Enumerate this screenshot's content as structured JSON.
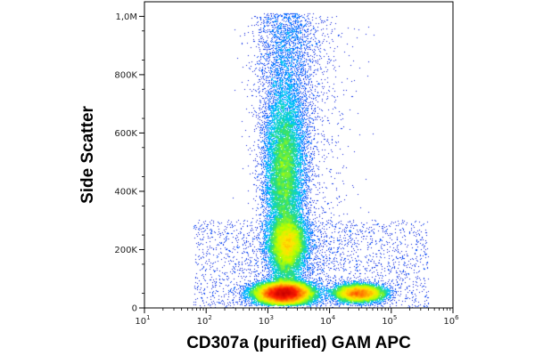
{
  "chart_data": {
    "type": "scatter",
    "title": "",
    "xlabel": "CD307a (purified) GAM APC",
    "ylabel": "Side Scatter",
    "x_scale": "log",
    "y_scale": "linear",
    "xlim": [
      10,
      1000000
    ],
    "ylim": [
      0,
      1050000
    ],
    "x_ticks": [
      {
        "value": 10,
        "base": "10",
        "exp": "1"
      },
      {
        "value": 100,
        "base": "10",
        "exp": "2"
      },
      {
        "value": 1000,
        "base": "10",
        "exp": "3"
      },
      {
        "value": 10000,
        "base": "10",
        "exp": "4"
      },
      {
        "value": 100000,
        "base": "10",
        "exp": "5"
      },
      {
        "value": 1000000,
        "base": "10",
        "exp": "6"
      }
    ],
    "y_ticks": [
      {
        "value": 0,
        "label": "0"
      },
      {
        "value": 200000,
        "label": "200K"
      },
      {
        "value": 400000,
        "label": "400K"
      },
      {
        "value": 600000,
        "label": "600K"
      },
      {
        "value": 800000,
        "label": "800K"
      },
      {
        "value": 1000000,
        "label": "1,0M"
      }
    ],
    "colormap": [
      "#0000c8",
      "#0050ff",
      "#00c8ff",
      "#30e070",
      "#b4ff00",
      "#ffe600",
      "#ff8c00",
      "#ff1e00",
      "#c80000"
    ],
    "populations": [
      {
        "x_center": 1800,
        "y_center": 50000,
        "x_spread_decades": 0.22,
        "y_spread": 18000,
        "density": "high"
      },
      {
        "x_center": 30000,
        "y_center": 50000,
        "x_spread_decades": 0.2,
        "y_spread": 15000,
        "density": "medium"
      },
      {
        "x_center": 1800,
        "y_center": 470000,
        "x_spread_decades": 0.15,
        "y_spread": 130000,
        "density": "medium"
      },
      {
        "x_center": 2100,
        "y_center": 220000,
        "x_spread_decades": 0.15,
        "y_spread": 45000,
        "density": "medium"
      }
    ],
    "grid": false,
    "legend": "none"
  }
}
